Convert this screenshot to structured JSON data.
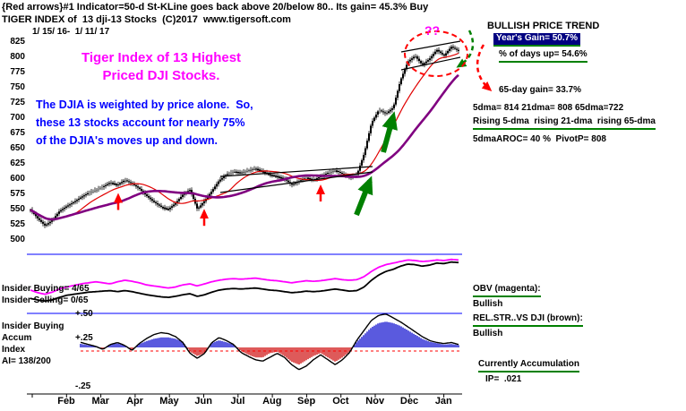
{
  "header": {
    "line1": "{Red arrows}#1 Indicator=50-d St-KLine goes back above 20/below 80.. Its gain= 45.3% Buy",
    "line2": "TIGER INDEX of  13 dji-13 Stocks  (C)2017  www.tigersoft.com",
    "date_range": "1/ 15/ 16-  1/ 11/ 17"
  },
  "annotations": {
    "title_line1": "Tiger Index of 13 Highest",
    "title_line2": "Priced DJI Stocks.",
    "blue_line1": "The DJIA is weighted by price alone.  So,",
    "blue_line2": "these 13 stocks account for nearly 75%",
    "blue_line3": "of the DJIA's moves up and down.",
    "question_marks": "??"
  },
  "right_panel": {
    "trend_title": "BULLISH PRICE TREND",
    "years_gain": "Year's Gain= 50.7%",
    "days_up": "% of days up= 54.6%",
    "gain_65day": "65-day gain= 33.7%",
    "dma_line": "5dma= 814 21dma= 808 65dma=722",
    "rising_line": "Rising 5-dma  rising 21-dma  rising 65-dma",
    "aroc_line": "5dmaAROC= 40 %  PivotP= 808",
    "obv_label": "OBV (magenta):",
    "obv_status": "Bullish",
    "relstr_label": "REL.STR..VS DJI (brown):",
    "relstr_status": "Bullish",
    "accum_label": "Currently Accumulation",
    "ip_line": "IP=  .021"
  },
  "left_panel": {
    "insider_buying": "Insider Buying= 4/65",
    "insider_selling": "Insider Selling= 0/65",
    "plus50": "+.50",
    "insider_buying_label": "Insider Buying",
    "accum_word": "Accum",
    "plus25": "+.25",
    "index_word": "Index",
    "ai_value": "AI= 138/200",
    "minus25": "-.25"
  },
  "colors": {
    "magenta": "#ff00ff",
    "blue_text": "#0000ff",
    "navy_highlight": "#000080",
    "green_underline": "#008000",
    "signal_red": "#ff0000",
    "ma_red": "#e00000",
    "ma_purple": "#800080",
    "histogram_blue": "#0000cc",
    "histogram_red": "#cc0000"
  },
  "chart_data": {
    "type": "candlestick",
    "title": "TIGER INDEX of 13 dji-13 Stocks",
    "date_range": "1/15/16 - 1/11/17",
    "ylim": [
      500,
      825
    ],
    "price_axis_ticks": [
      825,
      800,
      775,
      750,
      725,
      700,
      675,
      650,
      625,
      600,
      575,
      550,
      525,
      500
    ],
    "months": [
      "Feb",
      "Mar",
      "Apr",
      "May",
      "Jun",
      "Jul",
      "Aug",
      "Sep",
      "Oct",
      "Nov",
      "Dec",
      "Jan"
    ],
    "weekly_closes": [
      548,
      534,
      522,
      531,
      546,
      554,
      561,
      569,
      576,
      581,
      586,
      593,
      589,
      597,
      591,
      583,
      571,
      561,
      553,
      549,
      559,
      573,
      581,
      549,
      563,
      579,
      596,
      606,
      611,
      609,
      613,
      616,
      611,
      606,
      603,
      599,
      589,
      595,
      601,
      597,
      603,
      609,
      613,
      607,
      601,
      606,
      641,
      691,
      712,
      706,
      716,
      761,
      791,
      801,
      786,
      796,
      811,
      801,
      816,
      809
    ],
    "overlays": [
      {
        "name": "50-day moving average",
        "color": "#e00000"
      },
      {
        "name": "65-day moving average",
        "color": "#800080"
      }
    ],
    "obv": [
      38,
      33,
      30,
      34,
      40,
      44,
      47,
      50,
      52,
      54,
      52,
      50,
      54,
      57,
      55,
      52,
      48,
      46,
      44,
      42,
      44,
      48,
      50,
      46,
      50,
      54,
      57,
      59,
      60,
      59,
      60,
      61,
      59,
      57,
      56,
      54,
      52,
      54,
      56,
      55,
      56,
      58,
      60,
      58,
      57,
      58,
      64,
      74,
      82,
      87,
      90,
      93,
      96,
      95,
      93,
      94,
      96,
      95,
      97,
      96
    ],
    "rel_strength": [
      22,
      19,
      17,
      19,
      24,
      28,
      30,
      32,
      34,
      35,
      36,
      37,
      35,
      37,
      35,
      32,
      29,
      27,
      25,
      24,
      26,
      29,
      31,
      26,
      29,
      34,
      38,
      40,
      41,
      40,
      41,
      42,
      40,
      38,
      37,
      35,
      33,
      34,
      36,
      35,
      36,
      38,
      40,
      38,
      36,
      37,
      44,
      57,
      67,
      74,
      78,
      84,
      88,
      87,
      84,
      86,
      90,
      89,
      92,
      91
    ],
    "accum_histogram": [
      8,
      -10,
      -15,
      5,
      12,
      15,
      18,
      12,
      8,
      6,
      -6,
      10,
      14,
      8,
      -8,
      12,
      22,
      30,
      35,
      35,
      30,
      20,
      -15,
      -30,
      -20,
      15,
      25,
      18,
      10,
      -12,
      -25,
      -35,
      -35,
      -20,
      -15,
      -30,
      -50,
      -60,
      -45,
      -30,
      -20,
      -35,
      -50,
      -35,
      -15,
      20,
      45,
      70,
      85,
      90,
      85,
      75,
      60,
      45,
      30,
      20,
      15,
      10,
      12,
      8
    ],
    "oscillator": [
      5,
      -5,
      -10,
      0,
      8,
      12,
      14,
      10,
      6,
      2,
      -4,
      6,
      10,
      4,
      -6,
      8,
      18,
      26,
      30,
      28,
      22,
      10,
      -12,
      -22,
      -12,
      10,
      20,
      14,
      6,
      -10,
      -18,
      -25,
      -28,
      -20,
      -12,
      -20,
      -35,
      -45,
      -38,
      -25,
      -15,
      -25,
      -35,
      -25,
      -10,
      15,
      35,
      55,
      65,
      68,
      60,
      52,
      42,
      32,
      22,
      14,
      10,
      8,
      10,
      6
    ],
    "buy_arrow_bars": [
      12,
      24,
      40
    ]
  }
}
